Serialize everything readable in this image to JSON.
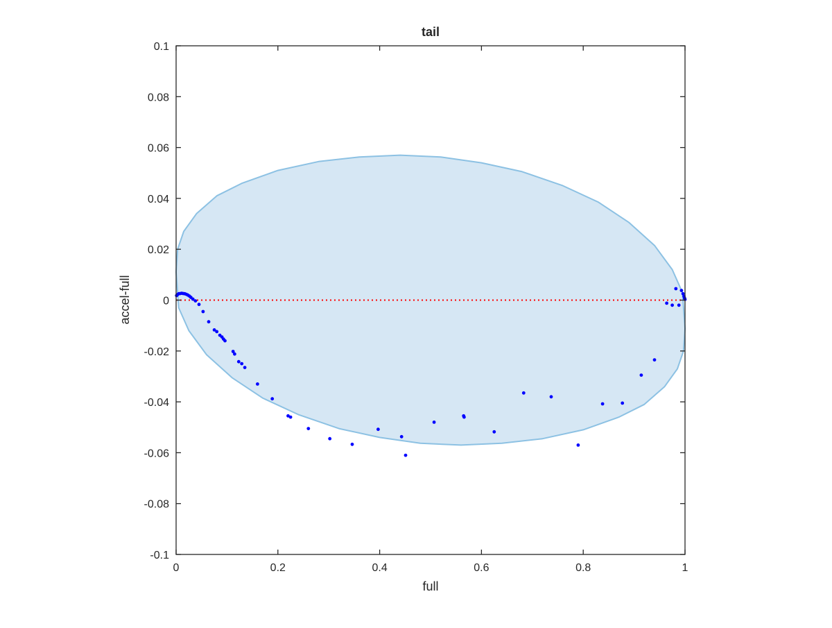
{
  "chart_data": {
    "type": "scatter",
    "title": "tail",
    "xlabel": "full",
    "ylabel": "accel-full",
    "xlim": [
      0,
      1
    ],
    "ylim": [
      -0.1,
      0.1
    ],
    "x_ticks": [
      0,
      0.2,
      0.4,
      0.6,
      0.8,
      1
    ],
    "x_tick_labels": [
      "0",
      "0.2",
      "0.4",
      "0.6",
      "0.8",
      "1"
    ],
    "y_ticks": [
      -0.1,
      -0.08,
      -0.06,
      -0.04,
      -0.02,
      0,
      0.02,
      0.04,
      0.06,
      0.08,
      0.1
    ],
    "y_tick_labels": [
      "-0.1",
      "-0.08",
      "-0.06",
      "-0.04",
      "-0.02",
      "0",
      "0.02",
      "0.04",
      "0.06",
      "0.08",
      "0.1"
    ],
    "grid": false,
    "colors": {
      "points": "#0000ff",
      "reference_line": "#ff0000",
      "ellipse_fill": "#d6e7f4",
      "ellipse_stroke": "#8cc1e3",
      "axes": "#262626"
    },
    "reference_line": {
      "y": 0,
      "style": "dotted"
    },
    "ellipse": {
      "points": [
        [
          0.0,
          0.0111
        ],
        [
          0.003,
          0.02
        ],
        [
          0.015,
          0.027
        ],
        [
          0.04,
          0.034
        ],
        [
          0.08,
          0.041
        ],
        [
          0.13,
          0.046
        ],
        [
          0.2,
          0.051
        ],
        [
          0.28,
          0.0545
        ],
        [
          0.36,
          0.0563
        ],
        [
          0.44,
          0.057
        ],
        [
          0.52,
          0.0563
        ],
        [
          0.6,
          0.054
        ],
        [
          0.68,
          0.0505
        ],
        [
          0.76,
          0.045
        ],
        [
          0.83,
          0.0385
        ],
        [
          0.89,
          0.0305
        ],
        [
          0.94,
          0.0215
        ],
        [
          0.975,
          0.012
        ],
        [
          0.995,
          0.003
        ],
        [
          1.0,
          -0.0112
        ],
        [
          0.997,
          -0.02
        ],
        [
          0.985,
          -0.027
        ],
        [
          0.96,
          -0.034
        ],
        [
          0.92,
          -0.041
        ],
        [
          0.87,
          -0.046
        ],
        [
          0.8,
          -0.051
        ],
        [
          0.72,
          -0.0545
        ],
        [
          0.64,
          -0.0563
        ],
        [
          0.56,
          -0.057
        ],
        [
          0.48,
          -0.0563
        ],
        [
          0.4,
          -0.054
        ],
        [
          0.32,
          -0.0505
        ],
        [
          0.24,
          -0.045
        ],
        [
          0.17,
          -0.0385
        ],
        [
          0.11,
          -0.0305
        ],
        [
          0.06,
          -0.0215
        ],
        [
          0.025,
          -0.012
        ],
        [
          0.005,
          -0.003
        ]
      ]
    },
    "series": [
      {
        "points": [
          [
            0.001,
            0.0018
          ],
          [
            0.003,
            0.0022
          ],
          [
            0.005,
            0.0025
          ],
          [
            0.008,
            0.0026
          ],
          [
            0.011,
            0.0027
          ],
          [
            0.014,
            0.0026
          ],
          [
            0.017,
            0.0025
          ],
          [
            0.02,
            0.0023
          ],
          [
            0.023,
            0.002
          ],
          [
            0.026,
            0.0016
          ],
          [
            0.029,
            0.0011
          ],
          [
            0.033,
            0.0004
          ],
          [
            0.038,
            -0.0003
          ],
          [
            0.045,
            -0.0017
          ],
          [
            0.053,
            -0.0045
          ],
          [
            0.064,
            -0.0085
          ],
          [
            0.075,
            -0.0117
          ],
          [
            0.08,
            -0.0124
          ],
          [
            0.086,
            -0.0138
          ],
          [
            0.09,
            -0.0145
          ],
          [
            0.093,
            -0.0153
          ],
          [
            0.096,
            -0.016
          ],
          [
            0.112,
            -0.0202
          ],
          [
            0.115,
            -0.0212
          ],
          [
            0.123,
            -0.0242
          ],
          [
            0.129,
            -0.025
          ],
          [
            0.135,
            -0.0265
          ],
          [
            0.16,
            -0.033
          ],
          [
            0.189,
            -0.0388
          ],
          [
            0.22,
            -0.0455
          ],
          [
            0.225,
            -0.046
          ],
          [
            0.26,
            -0.0505
          ],
          [
            0.302,
            -0.0545
          ],
          [
            0.346,
            -0.0567
          ],
          [
            0.397,
            -0.0508
          ],
          [
            0.443,
            -0.0537
          ],
          [
            0.451,
            -0.061
          ],
          [
            0.507,
            -0.048
          ],
          [
            0.565,
            -0.0455
          ],
          [
            0.566,
            -0.046
          ],
          [
            0.625,
            -0.0518
          ],
          [
            0.683,
            -0.0365
          ],
          [
            0.737,
            -0.038
          ],
          [
            0.79,
            -0.057
          ],
          [
            0.838,
            -0.0408
          ],
          [
            0.877,
            -0.0405
          ],
          [
            0.914,
            -0.0295
          ],
          [
            0.94,
            -0.0235
          ],
          [
            0.964,
            -0.0012
          ],
          [
            0.975,
            -0.002
          ],
          [
            0.982,
            0.0045
          ],
          [
            0.988,
            -0.002
          ],
          [
            0.993,
            0.0038
          ],
          [
            0.996,
            0.0025
          ],
          [
            0.998,
            0.0015
          ],
          [
            0.999,
            0.0008
          ],
          [
            1.0,
            0.0003
          ]
        ]
      }
    ]
  }
}
